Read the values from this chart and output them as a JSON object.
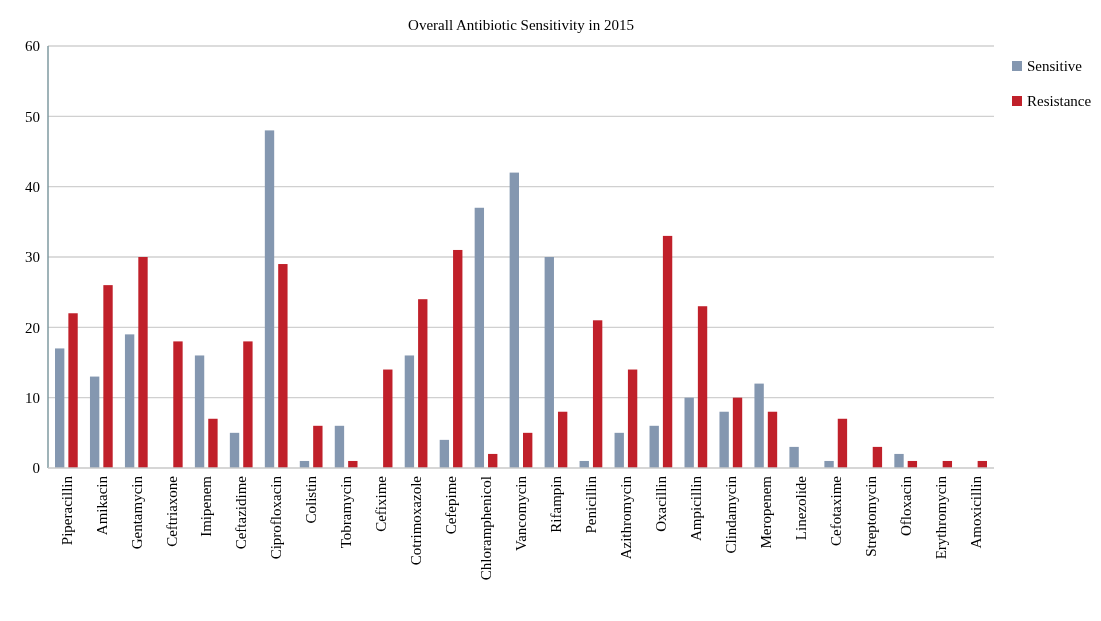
{
  "chart_data": {
    "type": "bar",
    "title": "Overall Antibiotic Sensitivity in 2015",
    "categories": [
      "Piperacillin",
      "Amikacin",
      "Gentamycin",
      "Ceftriaxone",
      "Imipenem",
      "Ceftazidime",
      "Ciprofloxacin",
      "Colistin",
      "Tobramycin",
      "Cefixime",
      "Cotrimoxazole",
      "Cefepime",
      "Chloramphenicol",
      "Vancomycin",
      "Rifampin",
      "Penicillin",
      "Azithromycin",
      "Oxacillin",
      "Ampicillin",
      "Clindamycin",
      "Meropenem",
      "Linezolide",
      "Cefotaxime",
      "Streptomycin",
      "Ofloxacin",
      "Erythromycin",
      "Amoxicillin"
    ],
    "series": [
      {
        "name": "Sensitive",
        "color": "#8497b0",
        "values": [
          17,
          13,
          19,
          0,
          16,
          5,
          48,
          1,
          6,
          0,
          16,
          4,
          37,
          42,
          30,
          1,
          5,
          6,
          10,
          8,
          12,
          3,
          1,
          0,
          2,
          0,
          0
        ]
      },
      {
        "name": "Resistance",
        "color": "#c0202a",
        "values": [
          22,
          26,
          30,
          18,
          7,
          18,
          29,
          6,
          1,
          14,
          24,
          31,
          2,
          5,
          8,
          21,
          14,
          33,
          23,
          10,
          8,
          0,
          7,
          3,
          1,
          1,
          1
        ]
      }
    ],
    "ylim": [
      0,
      60
    ],
    "yticks": [
      0,
      10,
      20,
      30,
      40,
      50,
      60
    ],
    "grid": "y",
    "legend": "top right"
  }
}
